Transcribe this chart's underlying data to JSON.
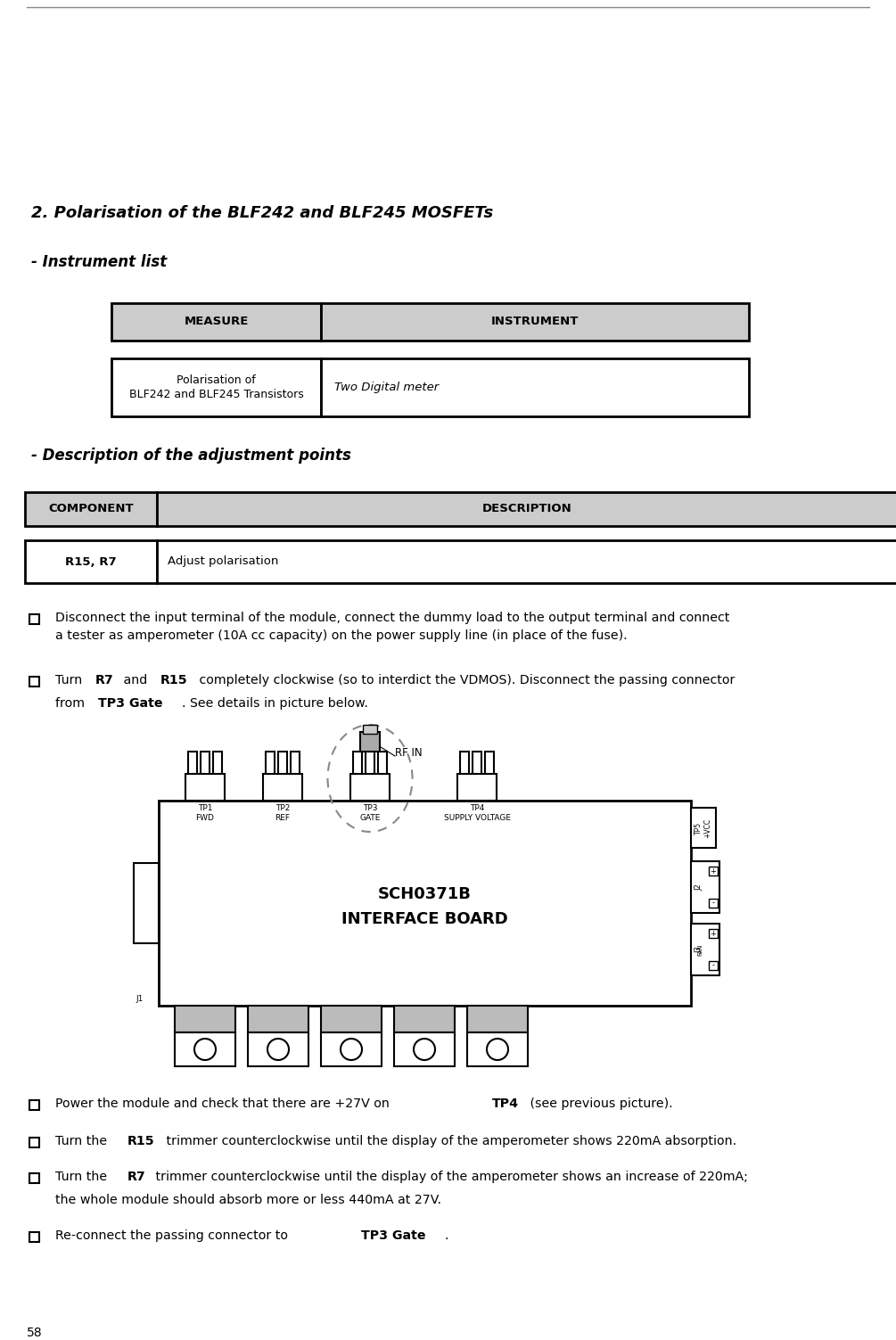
{
  "page_bg": "#ffffff",
  "page_num": "58",
  "section1_title": "2. Polarisation of the BLF242 and BLF245 MOSFETs",
  "section1_sub": "- Instrument list",
  "table1_header": [
    "MEASURE",
    "INSTRUMENT"
  ],
  "table1_row1_col1": "Polarisation of\nBLF242 and BLF245 Transistors",
  "table1_row1_col2": "Two Digital meter",
  "section2_sub": "- Description of the adjustment points",
  "table2_header": [
    "COMPONENT",
    "DESCRIPTION"
  ],
  "table2_row1_col1": "R15, R7",
  "table2_row1_col2": "Adjust polarisation",
  "bullet1_text": "Disconnect the input terminal of the module, connect the dummy load to the output terminal and connect\na tester as amperometer (10A cc capacity) on the power supply line (in place of the fuse).",
  "bullet2_pre": "Turn ",
  "bullet2_b1": "R7",
  "bullet2_mid": " and ",
  "bullet2_b2": "R15",
  "bullet2_post": " completely clockwise (so to interdict the VDMOS). Disconnect the passing connector\nfrom ",
  "bullet2_b3": "TP3 Gate",
  "bullet2_end": ". See details in picture below.",
  "bullet3_pre": "Power the module and check that there are +27V on ",
  "bullet3_b1": "TP4",
  "bullet3_post": " (see previous picture).",
  "bullet4_pre": "Turn the ",
  "bullet4_b1": "R15",
  "bullet4_post": " trimmer counterclockwise until the display of the amperometer shows 220mA absorption.",
  "bullet5_pre": "Turn the ",
  "bullet5_b1": "R7",
  "bullet5_post": " trimmer counterclockwise until the display of the amperometer shows an increase of 220mA;\nthe whole module should absorb more or less 440mA at 27V.",
  "bullet6_pre": "Re-connect the passing connector to ",
  "bullet6_b1": "TP3 Gate",
  "bullet6_post": ".",
  "rf_in_label": "RF IN",
  "board_name1": "SCH0371B",
  "board_name2": "INTERFACE BOARD",
  "header_bg": "#cccccc",
  "gray_med": "#bbbbbb"
}
